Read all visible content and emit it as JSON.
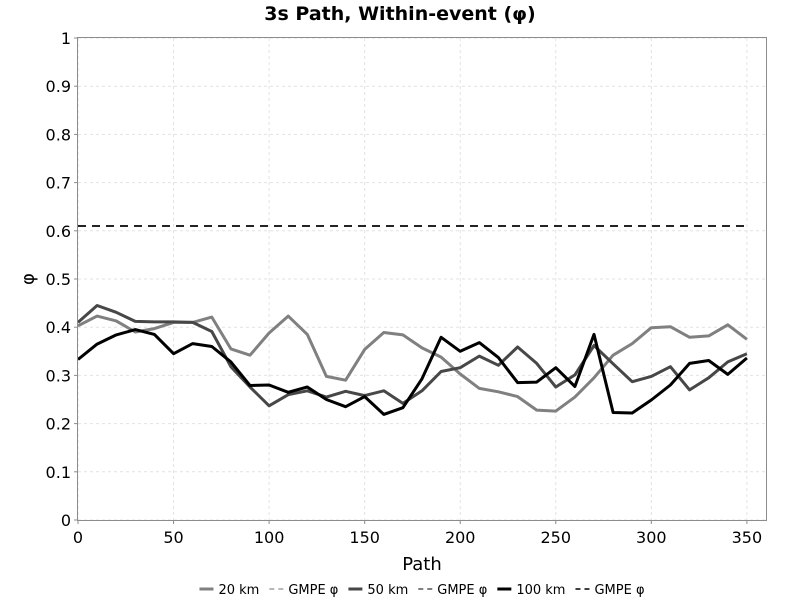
{
  "chart_data": {
    "type": "line",
    "title": "3s Path, Within-event (φ)",
    "xlabel": "Path",
    "ylabel": "φ",
    "xlim": [
      0,
      360
    ],
    "ylim": [
      0,
      1
    ],
    "xticks": [
      0,
      50,
      100,
      150,
      200,
      250,
      300,
      350
    ],
    "xtick_labels": [
      "0",
      "50",
      "100",
      "150",
      "200",
      "250",
      "300",
      "350"
    ],
    "yticks": [
      0,
      0.1,
      0.2,
      0.3,
      0.4,
      0.5,
      0.6,
      0.7,
      0.8,
      0.9,
      1
    ],
    "ytick_labels": [
      "0",
      "0.1",
      "0.2",
      "0.3",
      "0.4",
      "0.5",
      "0.6",
      "0.7",
      "0.8",
      "0.9",
      "1"
    ],
    "grid": true,
    "legend_position": "bottom",
    "x": [
      0,
      10,
      20,
      30,
      40,
      50,
      60,
      70,
      80,
      90,
      100,
      110,
      120,
      130,
      140,
      150,
      160,
      170,
      180,
      190,
      200,
      210,
      220,
      230,
      240,
      250,
      260,
      270,
      280,
      290,
      300,
      310,
      320,
      330,
      340,
      350
    ],
    "series": [
      {
        "name": "20 km",
        "color": "#808080",
        "width": 3,
        "dashed": false,
        "values": [
          0.403,
          0.423,
          0.413,
          0.39,
          0.397,
          0.41,
          0.41,
          0.421,
          0.355,
          0.342,
          0.388,
          0.423,
          0.385,
          0.298,
          0.29,
          0.354,
          0.389,
          0.384,
          0.357,
          0.338,
          0.303,
          0.273,
          0.266,
          0.256,
          0.228,
          0.226,
          0.255,
          0.295,
          0.342,
          0.366,
          0.399,
          0.401,
          0.379,
          0.382,
          0.405,
          0.375
        ]
      },
      {
        "name": "GMPE φ",
        "color": "#a0a0a0",
        "width": 1.5,
        "dashed": true,
        "values": [
          0.61,
          0.61,
          0.61,
          0.61,
          0.61,
          0.61,
          0.61,
          0.61,
          0.61,
          0.61,
          0.61,
          0.61,
          0.61,
          0.61,
          0.61,
          0.61,
          0.61,
          0.61,
          0.61,
          0.61,
          0.61,
          0.61,
          0.61,
          0.61,
          0.61,
          0.61,
          0.61,
          0.61,
          0.61,
          0.61,
          0.61,
          0.61,
          0.61,
          0.61,
          0.61,
          0.61
        ]
      },
      {
        "name": "50 km",
        "color": "#474747",
        "width": 3,
        "dashed": false,
        "values": [
          0.41,
          0.445,
          0.431,
          0.412,
          0.411,
          0.411,
          0.41,
          0.391,
          0.318,
          0.276,
          0.237,
          0.26,
          0.268,
          0.255,
          0.267,
          0.258,
          0.268,
          0.242,
          0.268,
          0.308,
          0.316,
          0.34,
          0.321,
          0.359,
          0.325,
          0.276,
          0.301,
          0.362,
          0.324,
          0.287,
          0.298,
          0.318,
          0.27,
          0.295,
          0.328,
          0.345
        ]
      },
      {
        "name": "GMPE φ",
        "color": "#555555",
        "width": 1.5,
        "dashed": true,
        "values": [
          0.61,
          0.61,
          0.61,
          0.61,
          0.61,
          0.61,
          0.61,
          0.61,
          0.61,
          0.61,
          0.61,
          0.61,
          0.61,
          0.61,
          0.61,
          0.61,
          0.61,
          0.61,
          0.61,
          0.61,
          0.61,
          0.61,
          0.61,
          0.61,
          0.61,
          0.61,
          0.61,
          0.61,
          0.61,
          0.61,
          0.61,
          0.61,
          0.61,
          0.61,
          0.61,
          0.61
        ]
      },
      {
        "name": "100 km",
        "color": "#000000",
        "width": 3,
        "dashed": false,
        "values": [
          0.333,
          0.365,
          0.384,
          0.395,
          0.385,
          0.345,
          0.366,
          0.36,
          0.328,
          0.279,
          0.28,
          0.265,
          0.276,
          0.25,
          0.235,
          0.256,
          0.219,
          0.233,
          0.293,
          0.379,
          0.35,
          0.368,
          0.337,
          0.285,
          0.286,
          0.316,
          0.277,
          0.385,
          0.223,
          0.222,
          0.249,
          0.28,
          0.325,
          0.331,
          0.302,
          0.336
        ]
      },
      {
        "name": "GMPE φ",
        "color": "#000000",
        "width": 1.5,
        "dashed": true,
        "values": [
          0.61,
          0.61,
          0.61,
          0.61,
          0.61,
          0.61,
          0.61,
          0.61,
          0.61,
          0.61,
          0.61,
          0.61,
          0.61,
          0.61,
          0.61,
          0.61,
          0.61,
          0.61,
          0.61,
          0.61,
          0.61,
          0.61,
          0.61,
          0.61,
          0.61,
          0.61,
          0.61,
          0.61,
          0.61,
          0.61,
          0.61,
          0.61,
          0.61,
          0.61,
          0.61,
          0.61
        ]
      }
    ]
  }
}
